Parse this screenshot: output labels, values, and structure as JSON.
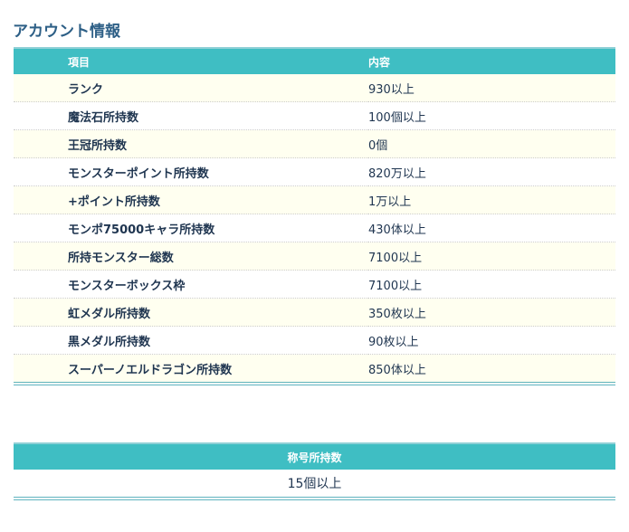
{
  "title": "アカウント情報",
  "table": {
    "headers": [
      "項目",
      "内容"
    ],
    "rows": [
      [
        "ランク",
        "930以上"
      ],
      [
        "魔法石所持数",
        "100個以上"
      ],
      [
        "王冠所持数",
        "0個"
      ],
      [
        "モンスターポイント所持数",
        "820万以上"
      ],
      [
        "+ポイント所持数",
        "1万以上"
      ],
      [
        "モンポ75000キャラ所持数",
        "430体以上"
      ],
      [
        "所持モンスター総数",
        "7100以上"
      ],
      [
        "モンスターボックス枠",
        "7100以上"
      ],
      [
        "虹メダル所持数",
        "350枚以上"
      ],
      [
        "黒メダル所持数",
        "90枚以上"
      ],
      [
        "スーパーノエルドラゴン所持数",
        "850体以上"
      ]
    ]
  },
  "titles_table": {
    "header": "称号所持数",
    "value": "15個以上"
  }
}
